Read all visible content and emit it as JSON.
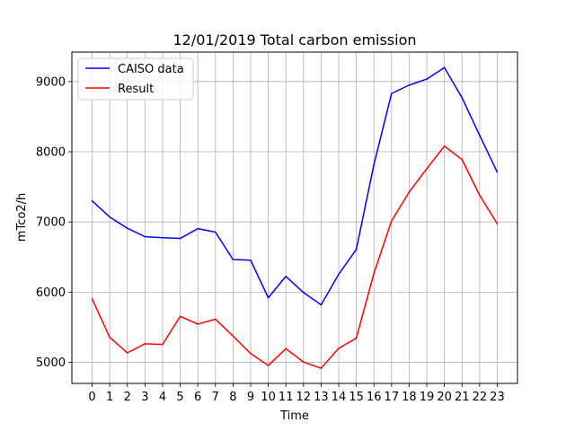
{
  "chart_data": {
    "type": "line",
    "title": "12/01/2019 Total carbon emission",
    "xlabel": "Time",
    "ylabel": "mTco2/h",
    "x": [
      0,
      1,
      2,
      3,
      4,
      5,
      6,
      7,
      8,
      9,
      10,
      11,
      12,
      13,
      14,
      15,
      16,
      17,
      18,
      19,
      20,
      21,
      22,
      23
    ],
    "xtick_labels": [
      "0",
      "1",
      "2",
      "3",
      "4",
      "5",
      "6",
      "7",
      "8",
      "9",
      "10",
      "11",
      "12",
      "13",
      "14",
      "15",
      "16",
      "17",
      "18",
      "19",
      "20",
      "21",
      "22",
      "23"
    ],
    "yticks": [
      5000,
      6000,
      7000,
      8000,
      9000
    ],
    "ytick_labels": [
      "5000",
      "6000",
      "7000",
      "8000",
      "9000"
    ],
    "xlim": [
      -1.15,
      24.15
    ],
    "ylim": [
      4700,
      9420
    ],
    "grid": true,
    "legend_position": "upper-left",
    "series": [
      {
        "name": "CAISO data",
        "color": "#0000ff",
        "values": [
          7300,
          7070,
          6910,
          6790,
          6775,
          6765,
          6905,
          6855,
          6465,
          6455,
          5920,
          6225,
          5995,
          5820,
          6255,
          6610,
          7820,
          8830,
          8950,
          9035,
          9200,
          8770,
          8235,
          7710
        ]
      },
      {
        "name": "Result",
        "color": "#ff0000",
        "values": [
          5905,
          5355,
          5135,
          5265,
          5255,
          5655,
          5545,
          5615,
          5375,
          5125,
          4955,
          5195,
          5005,
          4915,
          5200,
          5345,
          6270,
          7015,
          7425,
          7760,
          8080,
          7890,
          7380,
          6975
        ]
      }
    ]
  }
}
